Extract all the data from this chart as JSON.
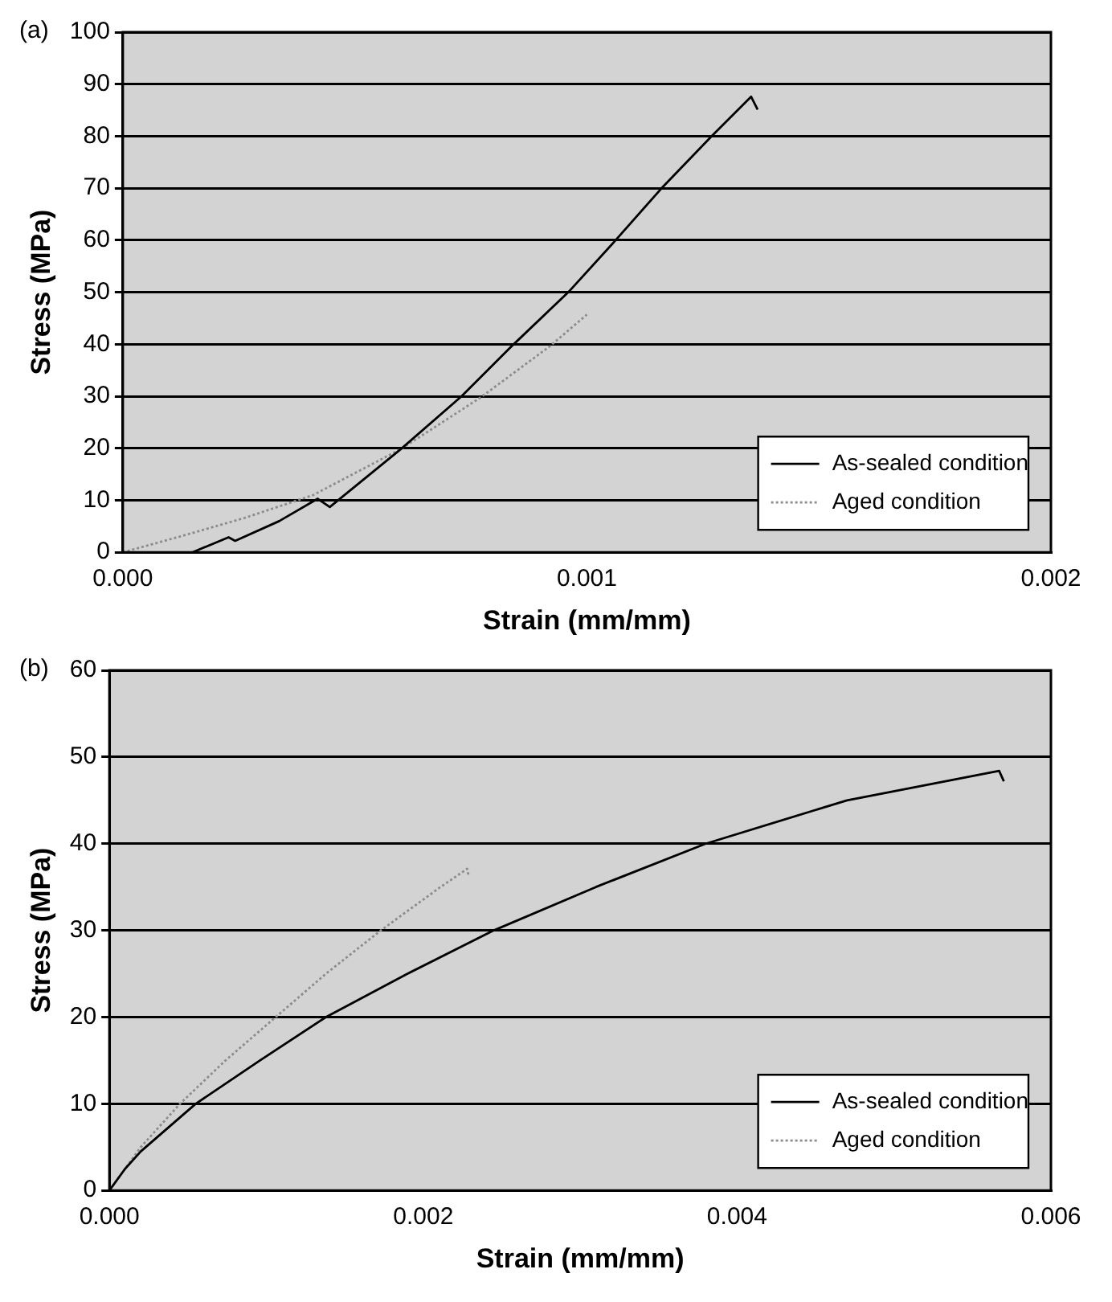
{
  "chart_data": [
    {
      "type": "line",
      "annotations": [
        "(a)"
      ],
      "xlabel": "Strain (mm/mm)",
      "ylabel": "Stress (MPa)",
      "xlim": [
        0,
        0.002
      ],
      "xticks": [
        {
          "value": 0,
          "label": "0.000"
        },
        {
          "value": 0.001,
          "label": "0.001"
        },
        {
          "value": 0.002,
          "label": "0.002"
        }
      ],
      "ylim": [
        0,
        100
      ],
      "yticks": [
        0,
        10,
        20,
        30,
        40,
        50,
        60,
        70,
        80,
        90,
        100
      ],
      "grid": "y",
      "legend": "bottom right",
      "marker": "none",
      "series": [
        {
          "name": "As-sealed condition",
          "color": "#000000",
          "line_style": "solid",
          "x": [
            0.00015,
            0.000228,
            0.000242,
            0.000337,
            0.00042,
            0.000446,
            0.0006,
            0.00073,
            0.00084,
            0.00096,
            0.00106,
            0.00116,
            0.00127,
            0.001354,
            0.001368
          ],
          "values": [
            0,
            2.9,
            2.2,
            6,
            10.3,
            8.7,
            19.9,
            30,
            39.8,
            50,
            59.8,
            69.9,
            80.1,
            87.6,
            85.1
          ]
        },
        {
          "name": "Aged condition",
          "color": "#8c8c8c",
          "line_style": "dotted",
          "x": [
            0,
            0.000126,
            0.000262,
            0.00041,
            0.0006,
            0.00077,
            0.00092,
            0.001
          ],
          "values": [
            0,
            3.1,
            6.6,
            11,
            19.9,
            29.7,
            39.6,
            45.7
          ]
        }
      ]
    },
    {
      "type": "line",
      "annotations": [
        "(b)"
      ],
      "xlabel": "Strain (mm/mm)",
      "ylabel": "Stress (MPa)",
      "xlim": [
        0,
        0.006
      ],
      "xticks": [
        {
          "value": 0,
          "label": "0.000"
        },
        {
          "value": 0.002,
          "label": "0.002"
        },
        {
          "value": 0.004,
          "label": "0.004"
        },
        {
          "value": 0.006,
          "label": "0.006"
        }
      ],
      "ylim": [
        0,
        60
      ],
      "yticks": [
        0,
        10,
        20,
        30,
        40,
        50,
        60
      ],
      "grid": "y",
      "legend": "bottom right",
      "marker": "none",
      "series": [
        {
          "name": "As-sealed condition",
          "color": "#000000",
          "line_style": "solid",
          "x": [
            0,
            0.0001,
            0.0002,
            0.00055,
            0.00096,
            0.00138,
            0.0019,
            0.00245,
            0.0031,
            0.0038,
            0.0047,
            0.00567,
            0.0057
          ],
          "values": [
            0,
            2.5,
            4.5,
            10,
            15,
            20,
            25,
            30,
            35,
            40,
            45,
            48.4,
            47.2
          ]
        },
        {
          "name": "Aged condition",
          "color": "#8c8c8c",
          "line_style": "dotted",
          "x": [
            0,
            0.0002,
            0.00045,
            0.00074,
            0.00106,
            0.00138,
            0.00173,
            0.00211,
            0.00228,
            0.00229
          ],
          "values": [
            0,
            5,
            10,
            15,
            20,
            25,
            30,
            35,
            37.1,
            36.2
          ]
        }
      ]
    }
  ]
}
